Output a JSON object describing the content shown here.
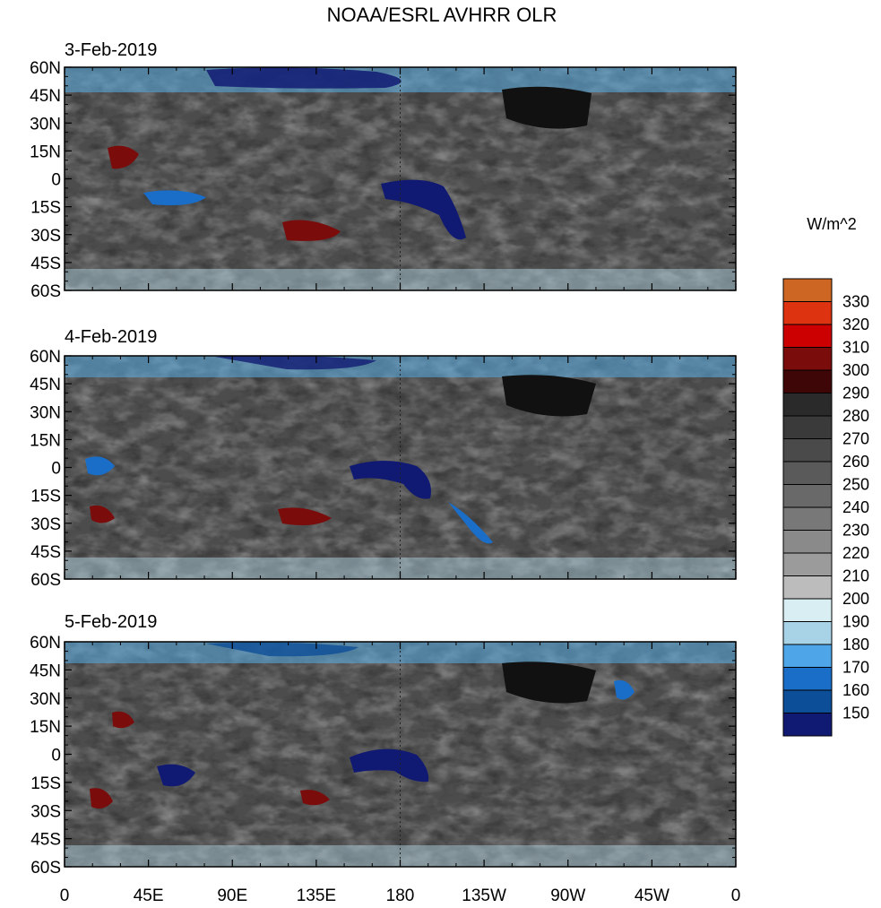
{
  "chart_data": {
    "type": "heatmap",
    "title": "NOAA/ESRL AVHRR OLR",
    "units": "W/m^2",
    "panels": [
      {
        "date": "3-Feb-2019"
      },
      {
        "date": "4-Feb-2019"
      },
      {
        "date": "5-Feb-2019"
      }
    ],
    "lat_ticks": [
      {
        "label": "60N",
        "value": 60
      },
      {
        "label": "45N",
        "value": 45
      },
      {
        "label": "30N",
        "value": 30
      },
      {
        "label": "15N",
        "value": 15
      },
      {
        "label": "0",
        "value": 0
      },
      {
        "label": "15S",
        "value": -15
      },
      {
        "label": "30S",
        "value": -30
      },
      {
        "label": "45S",
        "value": -45
      },
      {
        "label": "60S",
        "value": -60
      }
    ],
    "lon_ticks": [
      {
        "label": "0",
        "value": 0
      },
      {
        "label": "45E",
        "value": 45
      },
      {
        "label": "90E",
        "value": 90
      },
      {
        "label": "135E",
        "value": 135
      },
      {
        "label": "180",
        "value": 180
      },
      {
        "label": "135W",
        "value": 225
      },
      {
        "label": "90W",
        "value": 270
      },
      {
        "label": "45W",
        "value": 315
      },
      {
        "label": "0",
        "value": 360
      }
    ],
    "lon_range": [
      0,
      360
    ],
    "lat_range": [
      -60,
      60
    ],
    "colorbar": {
      "levels": [
        "330",
        "320",
        "310",
        "300",
        "290",
        "280",
        "270",
        "260",
        "250",
        "240",
        "230",
        "220",
        "210",
        "200",
        "190",
        "180",
        "170",
        "160",
        "150"
      ],
      "colors": [
        "#cc6622",
        "#dd3311",
        "#cc0000",
        "#7a0c0c",
        "#3e0606",
        "#2a2a2a",
        "#3a3a3a",
        "#4a4a4a",
        "#5a5a5a",
        "#696969",
        "#787878",
        "#8a8a8a",
        "#9b9b9b",
        "#bcbcbc",
        "#d8eef2",
        "#a8d2e6",
        "#4ea6e8",
        "#1a6ec8",
        "#0c4e98",
        "#111a72"
      ]
    }
  }
}
